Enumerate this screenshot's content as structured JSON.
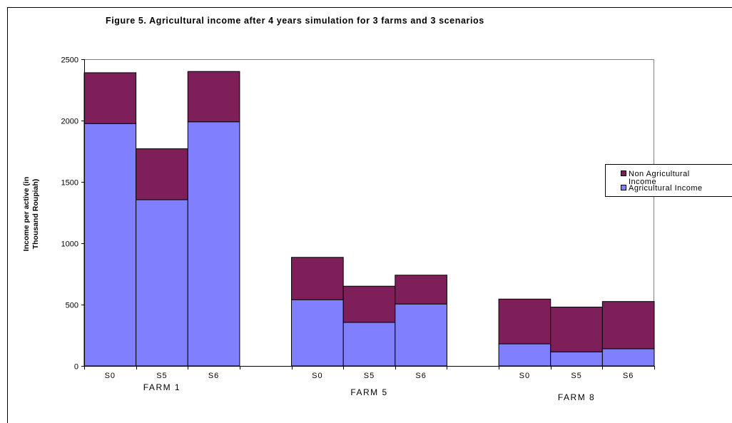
{
  "chart_data": {
    "type": "bar",
    "stacked": true,
    "title": "Figure 5. Agricultural income after 4 years simulation for 3 farms and 3 scenarios",
    "ylabel_lines": [
      "Income per active (in",
      "Thousand Roupiah)"
    ],
    "xlabel": "",
    "ylim": [
      0,
      2500
    ],
    "yticks": [
      0,
      500,
      1000,
      1500,
      2000,
      2500
    ],
    "grid": false,
    "legend_position": "right",
    "groups": [
      {
        "name": "FARM 1",
        "categories": [
          "S0",
          "S5",
          "S6"
        ]
      },
      {
        "name": "FARM 5",
        "categories": [
          "S0",
          "S5",
          "S6"
        ]
      },
      {
        "name": "FARM 8",
        "categories": [
          "S0",
          "S5",
          "S6"
        ]
      }
    ],
    "series": [
      {
        "name": "Agricultural Income",
        "color": "#8080ff",
        "values": [
          [
            1975,
            1355,
            1990
          ],
          [
            540,
            355,
            505
          ],
          [
            180,
            115,
            140
          ]
        ]
      },
      {
        "name": "Non Agricultural Income",
        "color": "#7f1f5a",
        "values": [
          [
            415,
            415,
            410
          ],
          [
            345,
            295,
            235
          ],
          [
            365,
            365,
            385
          ]
        ]
      }
    ],
    "legend_order": [
      1,
      0
    ]
  }
}
